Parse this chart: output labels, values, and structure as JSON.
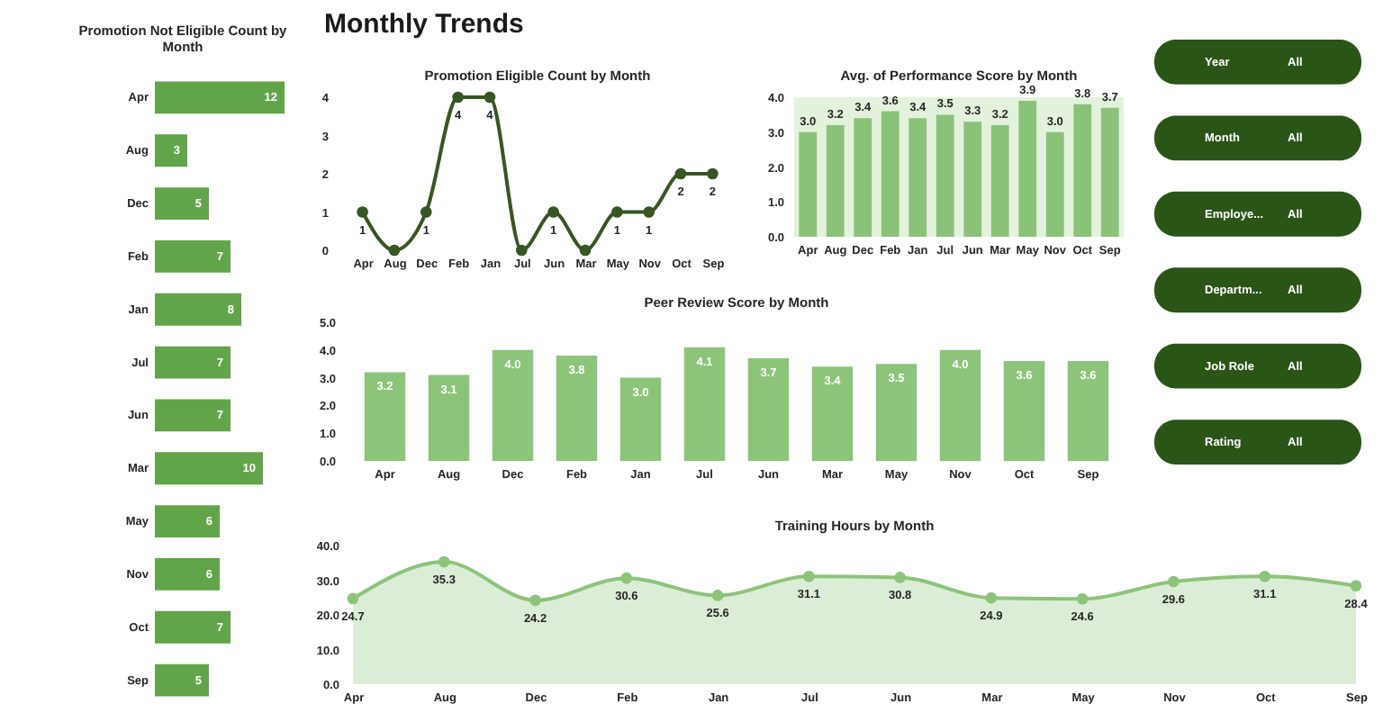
{
  "chart_data": [
    {
      "type": "bar",
      "orientation": "horizontal",
      "title": "Promotion Not Eligible Count by Month",
      "categories": [
        "Apr",
        "Aug",
        "Dec",
        "Feb",
        "Jan",
        "Jul",
        "Jun",
        "Mar",
        "May",
        "Nov",
        "Oct",
        "Sep"
      ],
      "values": [
        12,
        3,
        5,
        7,
        8,
        7,
        7,
        10,
        6,
        6,
        7,
        5
      ],
      "color": "#62a44a",
      "data_labels": true,
      "tick_labels": "y"
    },
    {
      "type": "other",
      "title": "Monthly Trends"
    },
    {
      "type": "line",
      "title": "Promotion Eligible Count by Month",
      "categories": [
        "Apr",
        "Aug",
        "Dec",
        "Feb",
        "Jan",
        "Jul",
        "Jun",
        "Mar",
        "May",
        "Nov",
        "Oct",
        "Sep"
      ],
      "values": [
        1,
        0,
        1,
        4,
        4,
        0,
        1,
        0,
        1,
        1,
        2,
        2
      ],
      "value_labels": [
        "1",
        null,
        "1",
        "4",
        "4",
        null,
        "1",
        null,
        "1",
        "1",
        "2",
        "2"
      ],
      "color": "#375623",
      "marker": "circle",
      "ylim": [
        0,
        4
      ],
      "yticks": [
        0,
        1,
        2,
        3,
        4
      ]
    },
    {
      "type": "bar",
      "title": "Avg. of Performance Score by Month",
      "categories": [
        "Apr",
        "Aug",
        "Dec",
        "Feb",
        "Jan",
        "Jul",
        "Jun",
        "Mar",
        "May",
        "Nov",
        "Oct",
        "Sep"
      ],
      "values": [
        3.0,
        3.2,
        3.4,
        3.6,
        3.4,
        3.5,
        3.3,
        3.2,
        3.9,
        3.0,
        3.8,
        3.7
      ],
      "value_labels": [
        "3.0",
        "3.2",
        "3.4",
        "3.6",
        "3.4",
        "3.5",
        "3.3",
        "3.2",
        "3.9",
        "3.0",
        "3.8",
        "3.7"
      ],
      "color": "#8bc27a",
      "ylim": [
        0,
        4
      ],
      "yticks": [
        {
          "value": 0,
          "label": "0.0"
        },
        {
          "value": 1,
          "label": "1.0"
        },
        {
          "value": 2,
          "label": "2.0"
        },
        {
          "value": 3,
          "label": "3.0"
        },
        {
          "value": 4,
          "label": "4.0"
        }
      ]
    },
    {
      "type": "other",
      "categories": [
        "Year",
        "Month",
        "Employe...",
        "Departm...",
        "Job Role",
        "Rating"
      ],
      "annotations": [
        "All",
        "All",
        "All",
        "All",
        "All",
        "All"
      ],
      "color": "#2b5417"
    },
    {
      "type": "bar",
      "title": "Peer Review Score by Month",
      "categories": [
        "Apr",
        "Aug",
        "Dec",
        "Feb",
        "Jan",
        "Jul",
        "Jun",
        "Mar",
        "May",
        "Nov",
        "Oct",
        "Sep"
      ],
      "values": [
        3.2,
        3.1,
        4.0,
        3.8,
        3.0,
        4.1,
        3.7,
        3.4,
        3.5,
        4.0,
        3.6,
        3.6
      ],
      "value_labels": [
        "3.2",
        "3.1",
        "4.0",
        "3.8",
        "3.0",
        "4.1",
        "3.7",
        "3.4",
        "3.5",
        "4.0",
        "3.6",
        "3.6"
      ],
      "color": "#8cc47a",
      "ylim": [
        0,
        5
      ],
      "yticks": [
        {
          "value": 0,
          "label": "0.0"
        },
        {
          "value": 1,
          "label": "1.0"
        },
        {
          "value": 2,
          "label": "2.0"
        },
        {
          "value": 3,
          "label": "3.0"
        },
        {
          "value": 4,
          "label": "4.0"
        },
        {
          "value": 5,
          "label": "5.0"
        }
      ]
    },
    {
      "type": "area",
      "title": "Training Hours by Month",
      "categories": [
        "Apr",
        "Aug",
        "Dec",
        "Feb",
        "Jan",
        "Jul",
        "Jun",
        "Mar",
        "May",
        "Nov",
        "Oct",
        "Sep"
      ],
      "values": [
        24.7,
        35.3,
        24.2,
        30.6,
        25.6,
        31.1,
        30.8,
        24.9,
        24.6,
        29.6,
        31.1,
        28.4
      ],
      "value_labels": [
        "24.7",
        "35.3",
        "24.2",
        "30.6",
        "25.6",
        "31.1",
        "30.8",
        "24.9",
        "24.6",
        "29.6",
        "31.1",
        "28.4"
      ],
      "color": "#8cc47a",
      "marker": "circle",
      "ylim": [
        0,
        40
      ],
      "yticks": [
        {
          "value": 0,
          "label": "0.0"
        },
        {
          "value": 10,
          "label": "10.0"
        },
        {
          "value": 20,
          "label": "20.0"
        },
        {
          "value": 30,
          "label": "30.0"
        },
        {
          "value": 40,
          "label": "40.0"
        }
      ]
    }
  ]
}
